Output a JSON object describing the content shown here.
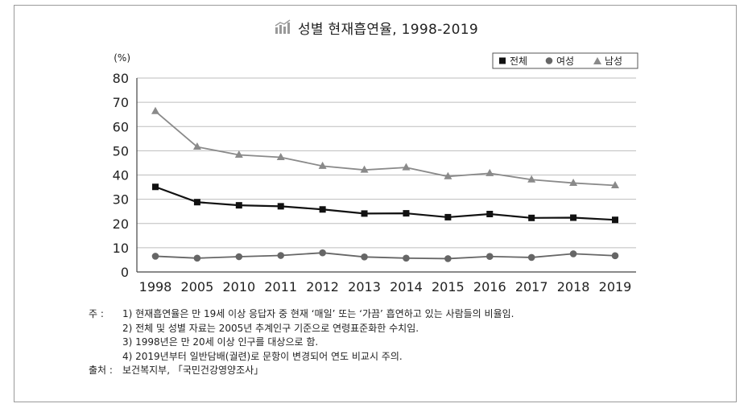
{
  "chart_data": {
    "type": "line",
    "title": "성별 현재흡연율, 1998-2019",
    "ylabel": "(%)",
    "ylim": [
      0,
      80
    ],
    "yticks": [
      0,
      10,
      20,
      30,
      40,
      50,
      60,
      70,
      80
    ],
    "categories": [
      "1998",
      "2005",
      "2010",
      "2011",
      "2012",
      "2013",
      "2014",
      "2015",
      "2016",
      "2017",
      "2018",
      "2019"
    ],
    "grid": true,
    "legend_position": "top-right",
    "series": [
      {
        "name": "전체",
        "marker": "square",
        "color": "#111111",
        "values": [
          35.1,
          28.8,
          27.5,
          27.1,
          25.8,
          24.1,
          24.2,
          22.6,
          23.9,
          22.3,
          22.4,
          21.5
        ]
      },
      {
        "name": "여성",
        "marker": "circle",
        "color": "#666666",
        "values": [
          6.5,
          5.7,
          6.3,
          6.8,
          7.9,
          6.2,
          5.7,
          5.5,
          6.4,
          6.0,
          7.5,
          6.7
        ]
      },
      {
        "name": "남성",
        "marker": "triangle",
        "color": "#8a8a8a",
        "values": [
          66.3,
          51.6,
          48.3,
          47.3,
          43.7,
          42.1,
          43.1,
          39.4,
          40.7,
          38.1,
          36.7,
          35.7
        ]
      }
    ]
  },
  "notes": {
    "label": "주   :",
    "items": [
      "1) 현재흡연율은 만 19세 이상 응답자 중 현재 ‘매일’ 또는 ‘가끔’ 흡연하고 있는 사람들의 비율임.",
      "2) 전체 및 성별 자료는 2005년 추계인구 기준으로 연령표준화한 수치임.",
      "3) 1998년은 만 20세 이상 인구를 대상으로 함.",
      "4) 2019년부터 일반담배(궐련)로 문항이 변경되어 연도 비교시 주의."
    ],
    "source_label": "출처 :",
    "source": "보건복지부, 「국민건강영양조사」"
  },
  "colors": {
    "grid": "#bdbdbd",
    "axis": "#444444",
    "frame": "#9a9a9a"
  }
}
